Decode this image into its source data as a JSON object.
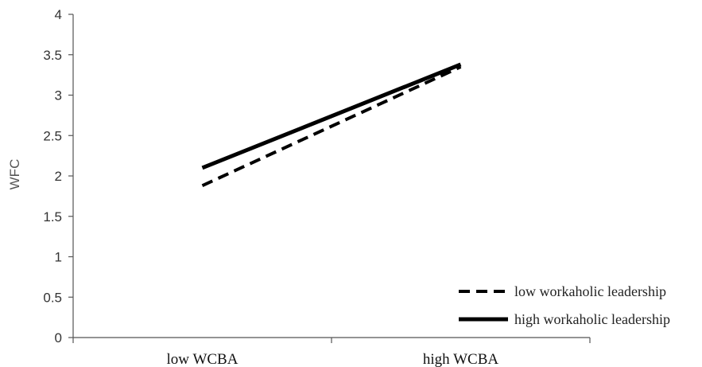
{
  "chart_data": {
    "type": "line",
    "title": "",
    "xlabel": "",
    "ylabel": "WFC",
    "categories": [
      "low WCBA",
      "high WCBA"
    ],
    "ylim": [
      0,
      4
    ],
    "yticks": [
      "0",
      "0.5",
      "1",
      "1.5",
      "2",
      "2.5",
      "3",
      "3.5",
      "4"
    ],
    "grid": false,
    "legend_position": "bottom-right",
    "series": [
      {
        "name": "low workaholic leadership",
        "values": [
          1.88,
          3.35
        ],
        "style": "dashed",
        "color": "#000000"
      },
      {
        "name": "high workaholic leadership",
        "values": [
          2.1,
          3.38
        ],
        "style": "solid",
        "color": "#000000"
      }
    ]
  }
}
